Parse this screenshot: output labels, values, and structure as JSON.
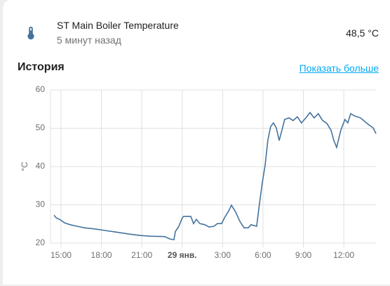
{
  "header": {
    "title": "ST Main Boiler Temperature",
    "subtitle": "5 минут назад",
    "state": "48,5 °C"
  },
  "history": {
    "title": "История",
    "link": "Показать больше"
  },
  "chart_data": {
    "type": "line",
    "ylabel": "°C",
    "color": "#44739e",
    "grid": true,
    "xlim": [
      14.22,
      38.39
    ],
    "ylim": [
      20,
      60
    ],
    "yticks": [
      20,
      30,
      40,
      50,
      60
    ],
    "xticks": [
      {
        "value": 15,
        "label": "15:00"
      },
      {
        "value": 18,
        "label": "18:00"
      },
      {
        "value": 21,
        "label": "21:00"
      },
      {
        "value": 24,
        "label": "29 янв."
      },
      {
        "value": 27,
        "label": "3:00"
      },
      {
        "value": 30,
        "label": "6:00"
      },
      {
        "value": 33,
        "label": "9:00"
      },
      {
        "value": 36,
        "label": "12:00"
      }
    ],
    "x": [
      14.48,
      14.64,
      14.95,
      15.26,
      15.68,
      16.2,
      16.72,
      17.5,
      18.28,
      19.06,
      20.0,
      20.89,
      21.67,
      22.71,
      23.07,
      23.39,
      23.49,
      23.75,
      24.01,
      24.11,
      24.64,
      24.84,
      25.05,
      25.31,
      25.68,
      25.99,
      26.35,
      26.61,
      26.93,
      27.14,
      27.45,
      27.66,
      27.97,
      28.28,
      28.59,
      28.91,
      29.11,
      29.53,
      29.74,
      29.95,
      30.16,
      30.36,
      30.57,
      30.78,
      30.99,
      31.2,
      31.41,
      31.61,
      31.93,
      32.24,
      32.55,
      32.86,
      33.18,
      33.49,
      33.8,
      34.11,
      34.43,
      34.74,
      35.05,
      35.26,
      35.47,
      35.78,
      36.09,
      36.3,
      36.51,
      36.82,
      37.24,
      37.55,
      37.86,
      38.18,
      38.39
    ],
    "values": [
      27.3,
      26.6,
      26.1,
      25.3,
      24.8,
      24.4,
      24.0,
      23.7,
      23.3,
      22.9,
      22.4,
      22.0,
      21.8,
      21.7,
      21.1,
      20.9,
      23.0,
      24.4,
      26.6,
      27.0,
      27.0,
      25.1,
      26.2,
      25.1,
      24.8,
      24.2,
      24.4,
      25.1,
      25.1,
      26.6,
      28.4,
      29.9,
      28.1,
      25.7,
      24.0,
      24.0,
      24.8,
      24.4,
      30.3,
      35.8,
      40.4,
      46.8,
      50.5,
      51.4,
      50.1,
      46.8,
      49.5,
      52.3,
      52.7,
      52.0,
      53.0,
      51.4,
      52.7,
      54.1,
      52.7,
      53.8,
      52.0,
      51.3,
      49.5,
      46.8,
      45.0,
      49.5,
      52.3,
      51.4,
      53.8,
      53.2,
      52.7,
      51.8,
      50.9,
      50.1,
      48.6
    ]
  }
}
